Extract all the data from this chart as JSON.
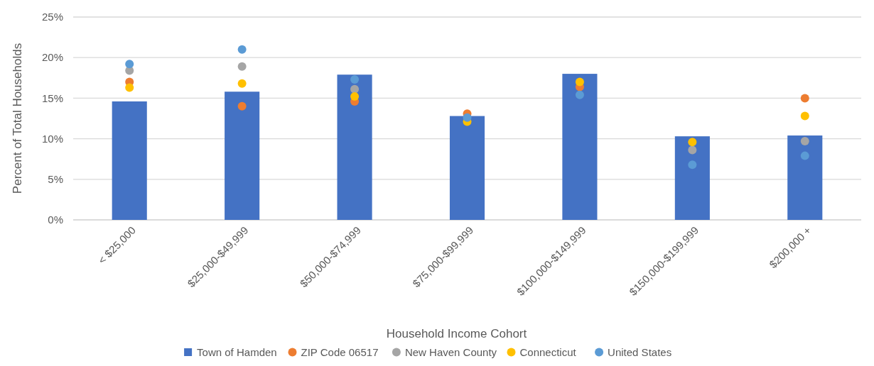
{
  "chart_data": {
    "type": "bar",
    "xlabel": "Household Income Cohort",
    "ylabel": "Percent of Total Households",
    "categories": [
      "< $25,000",
      "$25,000-$49,999",
      "$50,000-$74,999",
      "$75,000-$99,999",
      "$100,000-$149,999",
      "$150,000-$199,999",
      "$200,000 +"
    ],
    "series": [
      {
        "name": "Town of Hamden",
        "color": "#4472c4",
        "values": [
          14.6,
          15.8,
          17.9,
          12.8,
          18.0,
          10.3,
          10.4
        ]
      },
      {
        "name": "ZIP Code 06517",
        "type": "scatter",
        "color": "#ed7d31",
        "values": [
          17.0,
          14.0,
          14.6,
          13.1,
          16.4,
          null,
          15.0
        ]
      },
      {
        "name": "New Haven County",
        "type": "scatter",
        "color": "#a5a5a5",
        "values": [
          18.4,
          18.9,
          16.1,
          null,
          null,
          8.6,
          9.7
        ]
      },
      {
        "name": "Connecticut",
        "type": "scatter",
        "color": "#ffc000",
        "values": [
          16.3,
          16.8,
          15.2,
          12.1,
          17.0,
          9.6,
          12.8
        ]
      },
      {
        "name": "United States",
        "type": "scatter",
        "color": "#5b9bd5",
        "values": [
          19.2,
          21.0,
          17.3,
          12.6,
          15.4,
          6.8,
          7.9
        ]
      }
    ],
    "ylim": [
      0,
      25
    ],
    "yticks": [
      {
        "value": 0,
        "label": "0%"
      },
      {
        "value": 5,
        "label": "5%"
      },
      {
        "value": 10,
        "label": "10%"
      },
      {
        "value": 15,
        "label": "15%"
      },
      {
        "value": 20,
        "label": "20%"
      },
      {
        "value": 25,
        "label": "25%"
      }
    ],
    "grid": "y",
    "legend": "bottom",
    "marker": "circle"
  }
}
